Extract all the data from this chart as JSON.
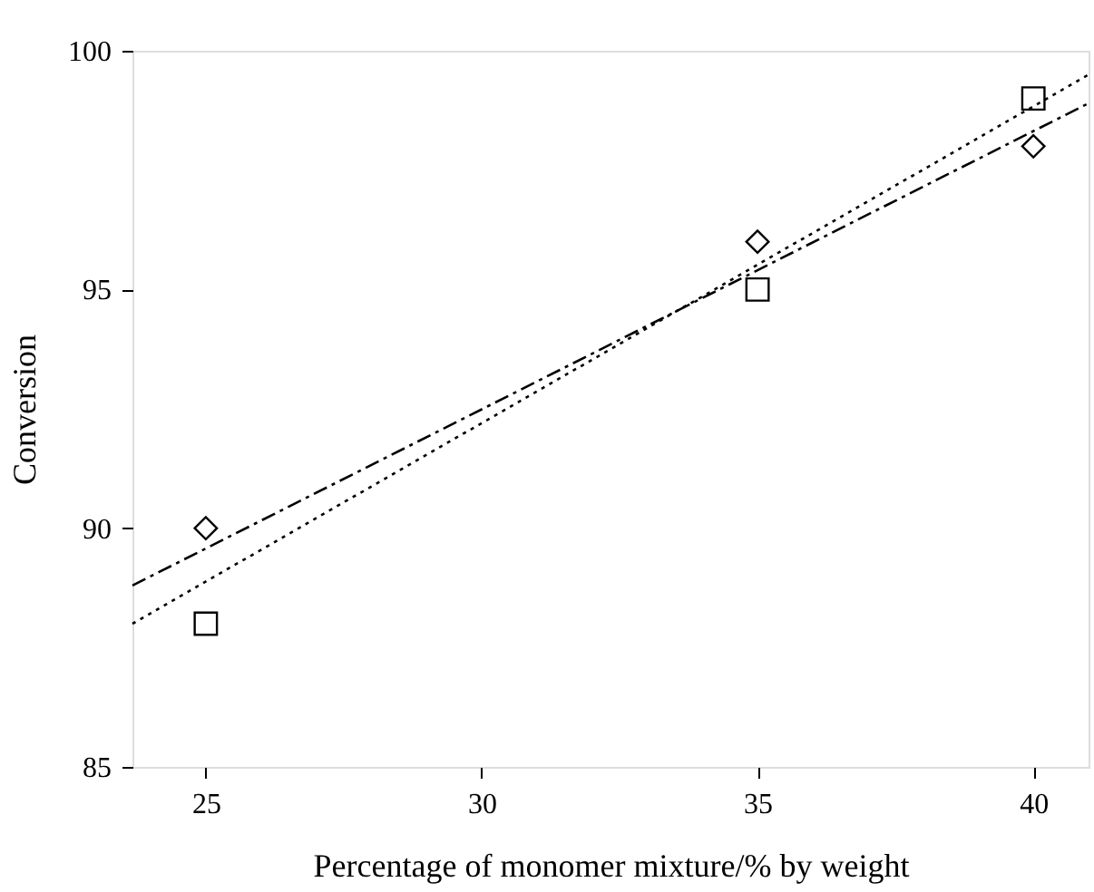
{
  "chart_data": {
    "type": "scatter",
    "xlabel": "Percentage of monomer mixture/% by weight",
    "ylabel": "Conversion",
    "xlim": [
      23.67,
      41.0
    ],
    "ylim": [
      85,
      100
    ],
    "xticks": [
      25,
      30,
      35,
      40
    ],
    "yticks": [
      85,
      90,
      95,
      100
    ],
    "grid": false,
    "series": [
      {
        "type": "scatter",
        "marker": "square",
        "color": "#000000",
        "x": [
          25,
          35,
          40
        ],
        "values": [
          88,
          95,
          99
        ]
      },
      {
        "type": "scatter",
        "marker": "diamond",
        "color": "#000000",
        "x": [
          25,
          35,
          40
        ],
        "values": [
          90,
          96,
          98
        ]
      },
      {
        "type": "line",
        "line_style": "dotted",
        "marker": "none",
        "color": "#000000",
        "x": [
          23.67,
          41.0
        ],
        "values": [
          88.0,
          99.5
        ]
      },
      {
        "type": "line",
        "line_style": "dashed",
        "marker": "none",
        "color": "#000000",
        "x": [
          23.67,
          41.0
        ],
        "values": [
          88.8,
          98.9
        ]
      }
    ]
  }
}
